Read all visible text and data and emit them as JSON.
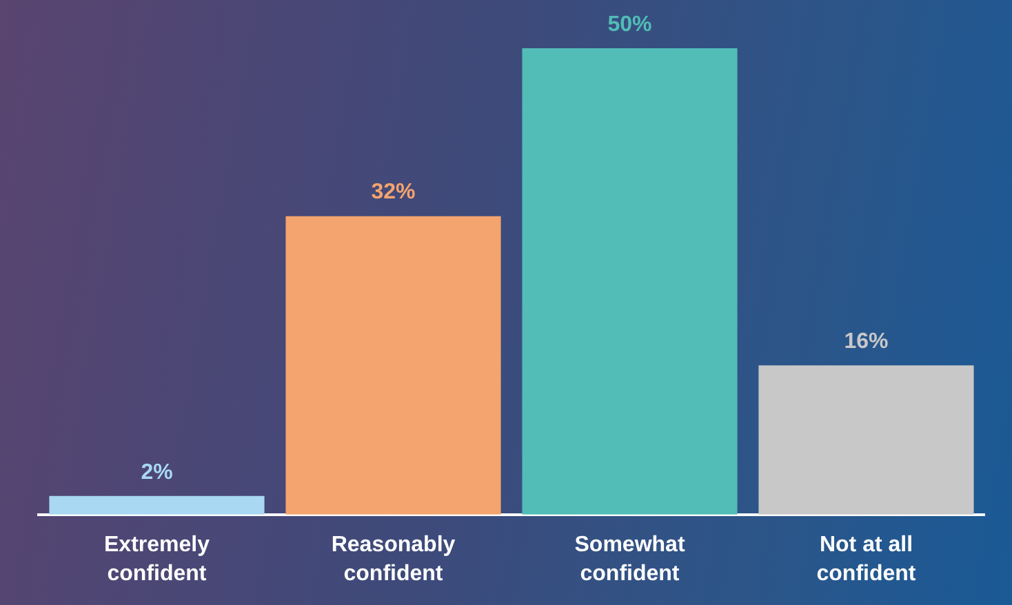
{
  "chart_data": {
    "type": "bar",
    "categories": [
      "Extremely confident",
      "Reasonably confident",
      "Somewhat confident",
      "Not at all confident"
    ],
    "values": [
      2,
      32,
      50,
      16
    ],
    "colors": [
      "#a8d8f2",
      "#f4a46e",
      "#52bdb7",
      "#c8c8c8"
    ],
    "value_labels": [
      "2%",
      "32%",
      "50%",
      "16%"
    ],
    "ylim": [
      0,
      50
    ]
  }
}
